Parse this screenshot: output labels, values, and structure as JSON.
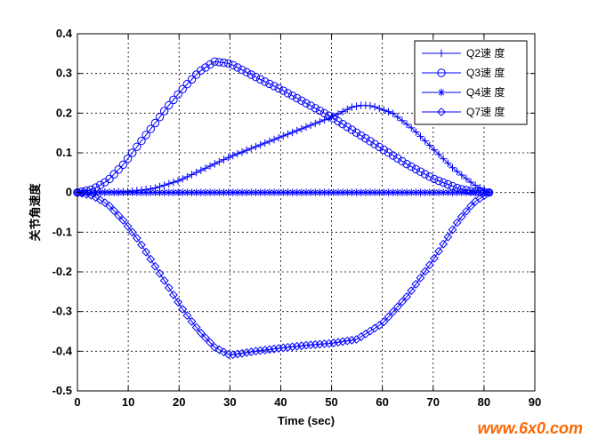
{
  "chart_data": {
    "type": "line",
    "title": "",
    "xlabel": "Time (sec)",
    "ylabel": "关节角速度",
    "xlim": [
      0,
      90
    ],
    "ylim": [
      -0.5,
      0.4
    ],
    "xticks": [
      "0",
      "10",
      "20",
      "30",
      "40",
      "50",
      "60",
      "70",
      "80",
      "90"
    ],
    "yticks": [
      "0.4",
      "0.3",
      "0.2",
      "0.1",
      "0",
      "-0.1",
      "-0.2",
      "-0.3",
      "-0.4",
      "-0.5"
    ],
    "grid": true,
    "legend_position": "top-right",
    "line_color": "#0000ff",
    "series": [
      {
        "name": "Q2速 度",
        "marker": "plus",
        "points": [
          [
            0,
            0
          ],
          [
            10,
            0.002
          ],
          [
            15,
            0.01
          ],
          [
            20,
            0.03
          ],
          [
            25,
            0.06
          ],
          [
            30,
            0.09
          ],
          [
            35,
            0.115
          ],
          [
            40,
            0.14
          ],
          [
            45,
            0.165
          ],
          [
            50,
            0.19
          ],
          [
            54,
            0.215
          ],
          [
            56,
            0.22
          ],
          [
            58,
            0.218
          ],
          [
            62,
            0.2
          ],
          [
            66,
            0.16
          ],
          [
            70,
            0.11
          ],
          [
            74,
            0.06
          ],
          [
            78,
            0.02
          ],
          [
            81,
            0
          ]
        ]
      },
      {
        "name": "Q3速 度",
        "marker": "circle",
        "points": [
          [
            0,
            0
          ],
          [
            3,
            0.008
          ],
          [
            6,
            0.03
          ],
          [
            9,
            0.07
          ],
          [
            12,
            0.12
          ],
          [
            15,
            0.17
          ],
          [
            18,
            0.22
          ],
          [
            21,
            0.265
          ],
          [
            24,
            0.305
          ],
          [
            27,
            0.33
          ],
          [
            30,
            0.325
          ],
          [
            33,
            0.305
          ],
          [
            36,
            0.285
          ],
          [
            40,
            0.26
          ],
          [
            45,
            0.225
          ],
          [
            50,
            0.19
          ],
          [
            55,
            0.15
          ],
          [
            60,
            0.11
          ],
          [
            65,
            0.07
          ],
          [
            70,
            0.035
          ],
          [
            75,
            0.01
          ],
          [
            78,
            0.002
          ],
          [
            81,
            0
          ]
        ]
      },
      {
        "name": "Q4速 度",
        "marker": "star",
        "points": [
          [
            0,
            0
          ],
          [
            20,
            0
          ],
          [
            40,
            0
          ],
          [
            60,
            0
          ],
          [
            81,
            0
          ]
        ]
      },
      {
        "name": "Q7速 度",
        "marker": "diamond",
        "points": [
          [
            0,
            0
          ],
          [
            3,
            -0.008
          ],
          [
            6,
            -0.03
          ],
          [
            9,
            -0.07
          ],
          [
            12,
            -0.12
          ],
          [
            15,
            -0.18
          ],
          [
            18,
            -0.24
          ],
          [
            21,
            -0.3
          ],
          [
            24,
            -0.35
          ],
          [
            27,
            -0.39
          ],
          [
            30,
            -0.41
          ],
          [
            35,
            -0.4
          ],
          [
            40,
            -0.392
          ],
          [
            45,
            -0.385
          ],
          [
            50,
            -0.38
          ],
          [
            55,
            -0.37
          ],
          [
            60,
            -0.33
          ],
          [
            65,
            -0.26
          ],
          [
            70,
            -0.17
          ],
          [
            75,
            -0.07
          ],
          [
            78,
            -0.025
          ],
          [
            81,
            0
          ]
        ]
      }
    ]
  },
  "watermark": {
    "text": "www.6x0.com",
    "color": "#ff6600"
  }
}
